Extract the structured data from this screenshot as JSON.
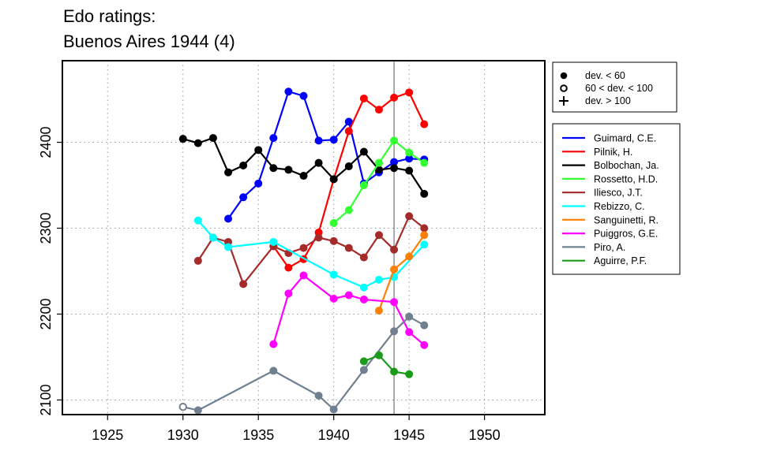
{
  "chart_data": {
    "type": "line",
    "title_lines": [
      "Edo ratings:",
      "Buenos Aires 1944 (4)"
    ],
    "xlabel": "",
    "ylabel": "",
    "xlim": [
      1922,
      1954
    ],
    "ylim": [
      2083,
      2495
    ],
    "x_ticks": [
      1925,
      1930,
      1935,
      1940,
      1945,
      1950
    ],
    "y_ticks": [
      2100,
      2200,
      2300,
      2400
    ],
    "grid": true,
    "reference_line_x": 1944,
    "reference_line_color": "#808080",
    "marker_legend": [
      {
        "symbol": "filled-circle",
        "label": "dev. < 60"
      },
      {
        "symbol": "open-circle",
        "label": "60 < dev. < 100"
      },
      {
        "symbol": "plus",
        "label": "dev. > 100"
      }
    ],
    "series": [
      {
        "name": "Guimard, C.E.",
        "color": "#0000ff",
        "points": [
          [
            1933,
            2311
          ],
          [
            1934,
            2336
          ],
          [
            1935,
            2352
          ],
          [
            1936,
            2405
          ],
          [
            1937,
            2459
          ],
          [
            1938,
            2454
          ],
          [
            1939,
            2402
          ],
          [
            1940,
            2403
          ],
          [
            1941,
            2424
          ],
          [
            1942,
            2352
          ],
          [
            1943,
            2365
          ],
          [
            1944,
            2377
          ],
          [
            1945,
            2381
          ],
          [
            1946,
            2380
          ]
        ]
      },
      {
        "name": "Pilnik, H.",
        "color": "#ff0000",
        "points": [
          [
            1936,
            2279
          ],
          [
            1937,
            2254
          ],
          [
            1938,
            2264
          ],
          [
            1939,
            2295
          ],
          [
            1940,
            2357
          ],
          [
            1941,
            2413
          ],
          [
            1942,
            2451
          ],
          [
            1943,
            2438
          ],
          [
            1944,
            2452
          ],
          [
            1945,
            2458
          ],
          [
            1946,
            2421
          ]
        ]
      },
      {
        "name": "Bolbochan, Ja.",
        "color": "#000000",
        "points": [
          [
            1930,
            2404
          ],
          [
            1931,
            2399
          ],
          [
            1932,
            2405
          ],
          [
            1933,
            2365
          ],
          [
            1934,
            2373
          ],
          [
            1935,
            2391
          ],
          [
            1936,
            2370
          ],
          [
            1937,
            2368
          ],
          [
            1938,
            2361
          ],
          [
            1939,
            2376
          ],
          [
            1940,
            2357
          ],
          [
            1941,
            2372
          ],
          [
            1942,
            2389
          ],
          [
            1943,
            2368
          ],
          [
            1944,
            2370
          ],
          [
            1945,
            2367
          ],
          [
            1946,
            2340
          ]
        ]
      },
      {
        "name": "Rossetto, H.D.",
        "color": "#33ff33",
        "points": [
          [
            1940,
            2306
          ],
          [
            1941,
            2321
          ],
          [
            1942,
            2350
          ],
          [
            1943,
            2376
          ],
          [
            1944,
            2402
          ],
          [
            1945,
            2388
          ],
          [
            1946,
            2376
          ]
        ]
      },
      {
        "name": "Iliesco, J.T.",
        "color": "#a52a2a",
        "points": [
          [
            1931,
            2262
          ],
          [
            1932,
            2289
          ],
          [
            1933,
            2284
          ],
          [
            1934,
            2235
          ],
          [
            1936,
            2279
          ],
          [
            1937,
            2271
          ],
          [
            1938,
            2277
          ],
          [
            1939,
            2289
          ],
          [
            1940,
            2285
          ],
          [
            1941,
            2277
          ],
          [
            1942,
            2266
          ],
          [
            1943,
            2292
          ],
          [
            1944,
            2275
          ],
          [
            1945,
            2314
          ],
          [
            1946,
            2300
          ]
        ]
      },
      {
        "name": "Rebizzo, C.",
        "color": "#00ffff",
        "points": [
          [
            1931,
            2309
          ],
          [
            1932,
            2289
          ],
          [
            1933,
            2278
          ],
          [
            1936,
            2284
          ],
          [
            1940,
            2246
          ],
          [
            1942,
            2231
          ],
          [
            1943,
            2240
          ],
          [
            1944,
            2243
          ],
          [
            1946,
            2281
          ]
        ]
      },
      {
        "name": "Sanguinetti, R.",
        "color": "#ff7f00",
        "points": [
          [
            1943,
            2204
          ],
          [
            1944,
            2252
          ],
          [
            1945,
            2267
          ],
          [
            1946,
            2292
          ]
        ]
      },
      {
        "name": "Puiggros, G.E.",
        "color": "#ff00ff",
        "points": [
          [
            1936,
            2165
          ],
          [
            1937,
            2224
          ],
          [
            1938,
            2245
          ],
          [
            1940,
            2218
          ],
          [
            1941,
            2222
          ],
          [
            1942,
            2217
          ],
          [
            1944,
            2214
          ],
          [
            1945,
            2179
          ],
          [
            1946,
            2164
          ]
        ]
      },
      {
        "name": "Piro, A.",
        "color": "#708090",
        "points": [
          [
            1930,
            2092,
            "open"
          ],
          [
            1931,
            2088
          ],
          [
            1936,
            2134
          ],
          [
            1939,
            2105
          ],
          [
            1940,
            2089
          ],
          [
            1942,
            2135
          ],
          [
            1944,
            2180
          ],
          [
            1945,
            2197
          ],
          [
            1946,
            2187
          ]
        ]
      },
      {
        "name": "Aguirre, P.F.",
        "color": "#1a9c1a",
        "points": [
          [
            1942,
            2145
          ],
          [
            1943,
            2152
          ],
          [
            1944,
            2133
          ],
          [
            1945,
            2130
          ]
        ]
      }
    ]
  }
}
